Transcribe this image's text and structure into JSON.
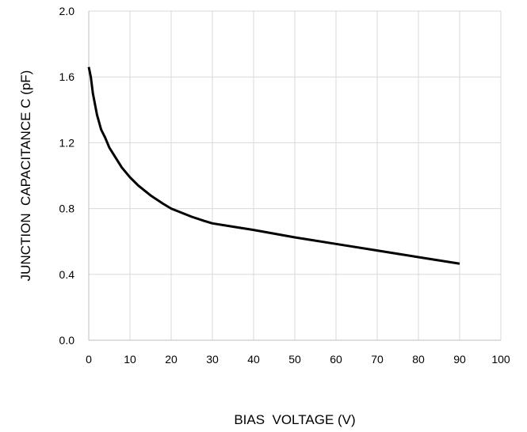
{
  "chart_data": {
    "type": "line",
    "xlabel": "BIAS  VOLTAGE (V)",
    "ylabel": "JUNCTION  CAPACITANCE C (pF)",
    "xlim": [
      0,
      100
    ],
    "ylim": [
      0.0,
      2.0
    ],
    "x_ticks": [
      "0",
      "10",
      "20",
      "30",
      "40",
      "50",
      "60",
      "70",
      "80",
      "90",
      "100"
    ],
    "y_ticks": [
      "0.0",
      "0.4",
      "0.8",
      "1.2",
      "1.6",
      "2.0"
    ],
    "grid": true,
    "line_color": "#000000",
    "grid_color": "#d9d9d9",
    "series": [
      {
        "x": [
          0,
          0.5,
          1,
          2,
          3,
          4,
          5,
          6,
          8,
          10,
          12,
          15,
          18,
          20,
          25,
          28,
          30,
          35,
          40,
          50,
          60,
          70,
          80,
          90
        ],
        "y": [
          1.66,
          1.6,
          1.5,
          1.37,
          1.28,
          1.23,
          1.17,
          1.13,
          1.05,
          0.99,
          0.94,
          0.88,
          0.83,
          0.8,
          0.75,
          0.725,
          0.71,
          0.69,
          0.67,
          0.625,
          0.585,
          0.545,
          0.505,
          0.465
        ]
      }
    ]
  }
}
